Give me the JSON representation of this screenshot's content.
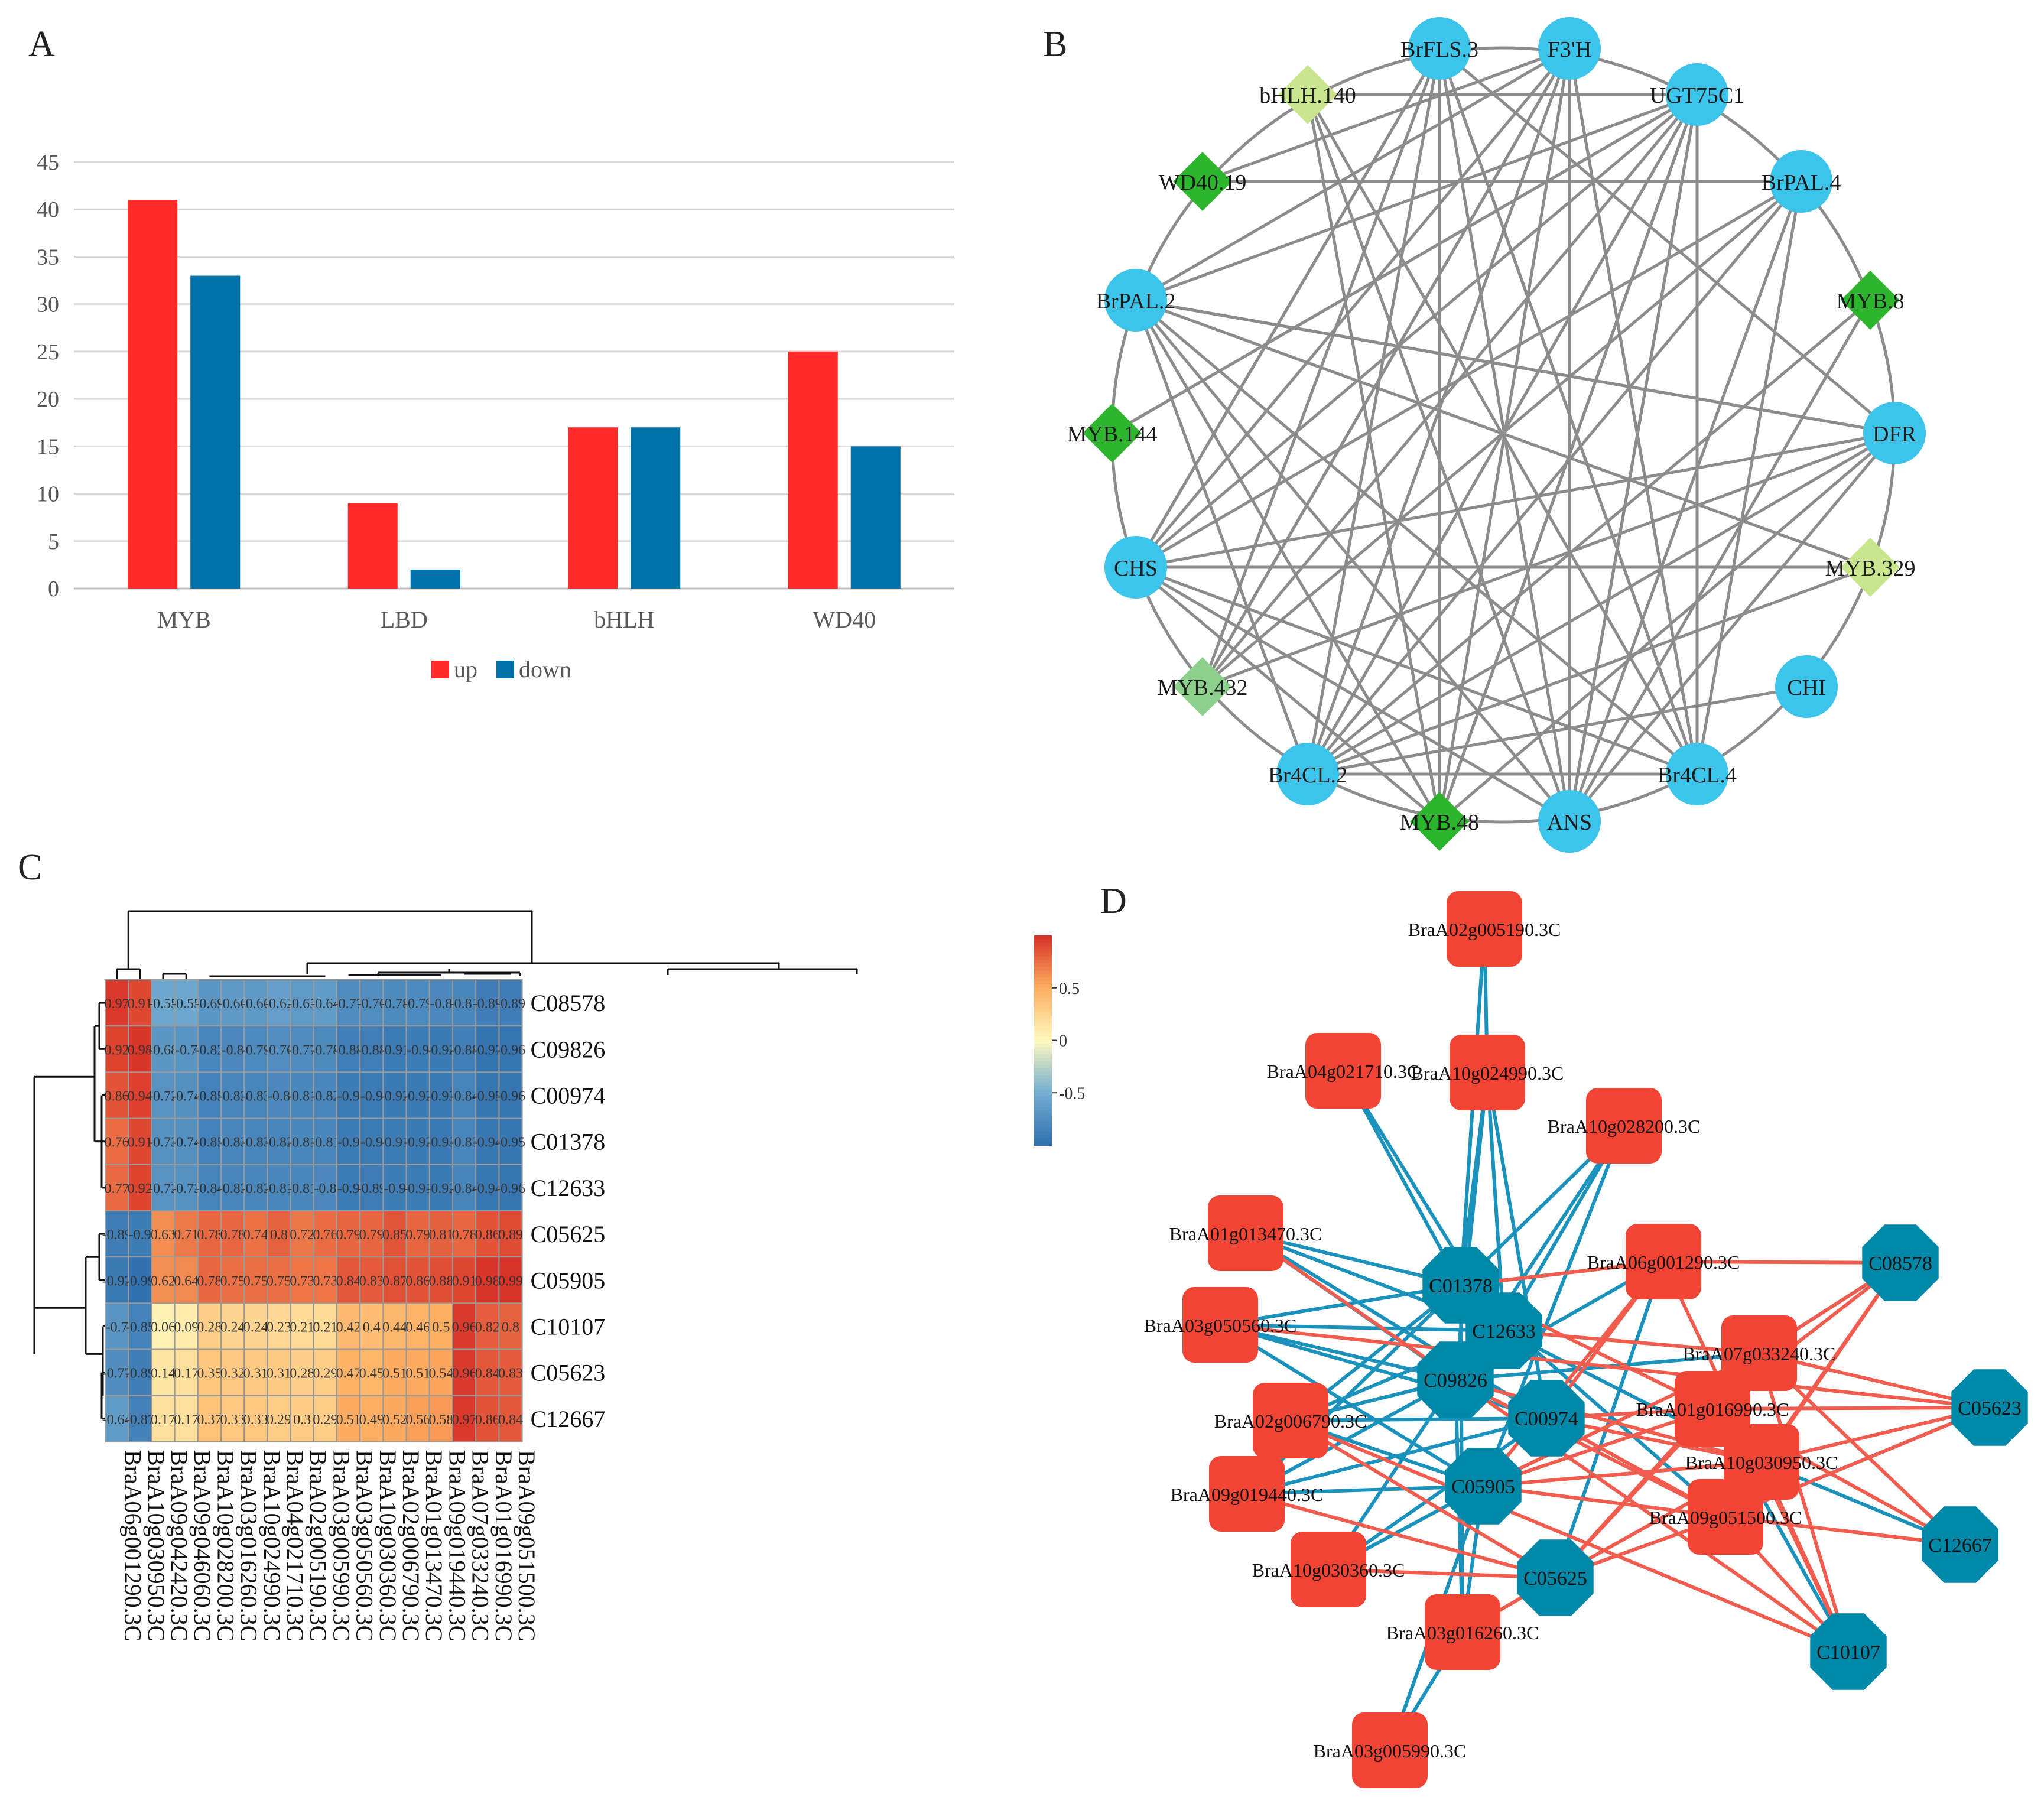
{
  "colors": {
    "up": "#FF2A2A",
    "down": "#0070A8",
    "circle_node": "#3CC4EA",
    "diamond_dark": "#2DB52D",
    "diamond_light": "#C9E58E",
    "diamond_mid": "#8DD08D",
    "network_edge": "#8C8C8C",
    "d_red": "#F04535",
    "d_teal": "#0088A8",
    "d_edge_blue": "#1A92BC",
    "d_edge_red": "#F05D4E"
  },
  "panels": {
    "a": "A",
    "b": "B",
    "c": "C",
    "d": "D"
  },
  "chart_data": [
    {
      "panel": "A",
      "type": "bar",
      "categories": [
        "MYB",
        "LBD",
        "bHLH",
        "WD40"
      ],
      "series": [
        {
          "name": "up",
          "values": [
            41,
            9,
            17,
            25
          ]
        },
        {
          "name": "down",
          "values": [
            33,
            2,
            17,
            15
          ]
        }
      ],
      "ylim": [
        0,
        45
      ],
      "yticks": [
        0,
        5,
        10,
        15,
        20,
        25,
        30,
        35,
        40,
        45
      ],
      "grid": true,
      "legend": "bottom"
    },
    {
      "panel": "C",
      "type": "heatmap",
      "rows": [
        "C08578",
        "C09826",
        "C00974",
        "C01378",
        "C12633",
        "C05625",
        "C05905",
        "C10107",
        "C05623",
        "C12667"
      ],
      "columns": [
        "BraA06g001290.3C",
        "BraA10g030950.3C",
        "BraA09g042420.3C",
        "BraA09g046060.3C",
        "BraA10g028200.3C",
        "BraA03g016260.3C",
        "BraA10g024990.3C",
        "BraA04g021710.3C",
        "BraA02g005190.3C",
        "BraA03g005990.3C",
        "BraA03g050560.3C",
        "BraA10g030360.3C",
        "BraA02g006790.3C",
        "BraA01g013470.3C",
        "BraA09g019440.3C",
        "BraA07g033240.3C",
        "BraA01g016990.3C",
        "BraA09g051500.3C"
      ],
      "values": [
        [
          0.97,
          0.91,
          -0.55,
          -0.55,
          -0.69,
          -0.66,
          -0.66,
          -0.62,
          -0.65,
          -0.64,
          -0.77,
          -0.76,
          -0.78,
          -0.79,
          -0.8,
          -0.81,
          -0.89,
          -0.89
        ],
        [
          0.92,
          0.98,
          -0.68,
          -0.7,
          -0.82,
          -0.8,
          -0.79,
          -0.76,
          -0.77,
          -0.78,
          -0.88,
          -0.88,
          -0.91,
          -0.9,
          -0.92,
          -0.88,
          -0.97,
          -0.96
        ],
        [
          0.86,
          0.94,
          -0.72,
          -0.74,
          -0.85,
          -0.83,
          -0.83,
          -0.8,
          -0.81,
          -0.82,
          -0.9,
          -0.9,
          -0.92,
          -0.92,
          -0.93,
          -0.84,
          -0.95,
          -0.96
        ],
        [
          0.76,
          0.91,
          -0.73,
          -0.74,
          -0.85,
          -0.83,
          -0.83,
          -0.82,
          -0.81,
          -0.81,
          -0.9,
          -0.9,
          -0.91,
          -0.92,
          -0.93,
          -0.83,
          -0.94,
          -0.95
        ],
        [
          0.77,
          0.92,
          -0.72,
          -0.73,
          -0.84,
          -0.82,
          -0.82,
          -0.81,
          -0.81,
          -0.8,
          -0.9,
          -0.89,
          -0.9,
          -0.91,
          -0.92,
          -0.84,
          -0.94,
          -0.96
        ],
        [
          -0.89,
          -0.9,
          0.63,
          0.71,
          0.78,
          0.78,
          0.74,
          0.8,
          0.72,
          0.76,
          0.79,
          0.79,
          0.85,
          0.79,
          0.81,
          0.78,
          0.86,
          0.89
        ],
        [
          -0.92,
          -0.99,
          0.62,
          0.64,
          0.78,
          0.75,
          0.75,
          0.75,
          0.73,
          0.73,
          0.84,
          0.83,
          0.87,
          0.86,
          0.88,
          0.91,
          0.98,
          0.99
        ],
        [
          -0.7,
          -0.85,
          0.06,
          0.09,
          0.28,
          0.24,
          0.24,
          0.23,
          0.21,
          0.21,
          0.42,
          0.4,
          0.44,
          0.46,
          0.5,
          0.96,
          0.82,
          0.8
        ],
        [
          -0.77,
          -0.89,
          0.14,
          0.17,
          0.35,
          0.32,
          0.31,
          0.31,
          0.28,
          0.29,
          0.47,
          0.45,
          0.51,
          0.51,
          0.54,
          0.96,
          0.84,
          0.83
        ],
        [
          -0.64,
          -0.87,
          0.17,
          0.17,
          0.37,
          0.33,
          0.33,
          0.29,
          0.3,
          0.29,
          0.51,
          0.49,
          0.52,
          0.56,
          0.58,
          0.97,
          0.86,
          0.84
        ]
      ],
      "legend_ticks": [
        "0.5",
        "0",
        "-0.5"
      ],
      "legend": "top-right"
    }
  ],
  "network_b": {
    "nodes": [
      {
        "label": "BrFLS.3",
        "shape": "circle"
      },
      {
        "label": "F3'H",
        "shape": "circle"
      },
      {
        "label": "UGT75C1",
        "shape": "circle"
      },
      {
        "label": "BrPAL.4",
        "shape": "circle"
      },
      {
        "label": "MYB.8",
        "shape": "diamond-dark"
      },
      {
        "label": "DFR",
        "shape": "circle"
      },
      {
        "label": "MYB.329",
        "shape": "diamond-light"
      },
      {
        "label": "CHI",
        "shape": "circle"
      },
      {
        "label": "Br4CL.4",
        "shape": "circle"
      },
      {
        "label": "ANS",
        "shape": "circle"
      },
      {
        "label": "MYB.48",
        "shape": "diamond-dark"
      },
      {
        "label": "Br4CL.2",
        "shape": "circle"
      },
      {
        "label": "MYB.432",
        "shape": "diamond-mid"
      },
      {
        "label": "CHS",
        "shape": "circle"
      },
      {
        "label": "MYB.144",
        "shape": "diamond-dark"
      },
      {
        "label": "BrPAL.2",
        "shape": "circle"
      },
      {
        "label": "WD40.19",
        "shape": "diamond-dark"
      },
      {
        "label": "bHLH.140",
        "shape": "diamond-light"
      }
    ]
  },
  "network_d": {
    "genes": [
      "BraA02g005190.3C",
      "BraA04g021710.3C",
      "BraA10g024990.3C",
      "BraA10g028200.3C",
      "BraA01g013470.3C",
      "BraA06g001290.3C",
      "BraA03g050560.3C",
      "BraA07g033240.3C",
      "BraA02g006790.3C",
      "BraA01g016990.3C",
      "BraA10g030950.3C",
      "BraA09g019440.3C",
      "BraA09g051500.3C",
      "BraA10g030360.3C",
      "BraA03g016260.3C",
      "BraA03g005990.3C"
    ],
    "metabolites": [
      "C01378",
      "C12633",
      "C09826",
      "C00974",
      "C05905",
      "C05625",
      "C08578",
      "C05623",
      "C12667",
      "C10107"
    ]
  }
}
